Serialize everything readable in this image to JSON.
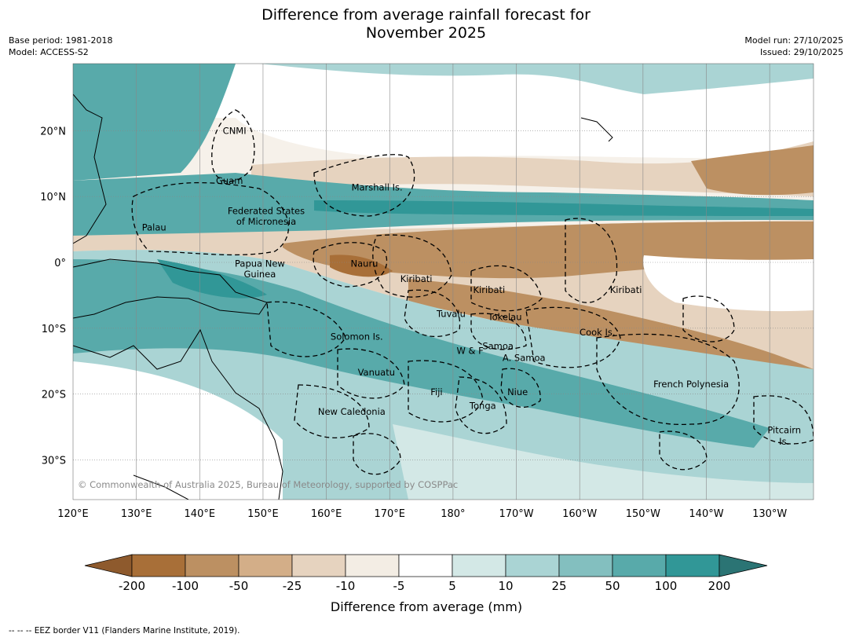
{
  "title_line1": "Difference from average rainfall forecast for",
  "title_line2": "November 2025",
  "meta": {
    "base_period": "Base period: 1981-2018",
    "model": "Model: ACCESS-S2",
    "model_run": "Model run: 27/10/2025",
    "issued": "Issued: 29/10/2025"
  },
  "lon_ticks": [
    "120°E",
    "130°E",
    "140°E",
    "150°E",
    "160°E",
    "170°E",
    "180°",
    "170°W",
    "160°W",
    "150°W",
    "140°W",
    "130°W"
  ],
  "lat_ticks": [
    "20°N",
    "10°N",
    "0°",
    "10°S",
    "20°S",
    "30°S"
  ],
  "places": [
    {
      "name": "CNMI",
      "lon": 145.5,
      "lat": 20.0
    },
    {
      "name": "Guam",
      "lon": 144.7,
      "lat": 12.4
    },
    {
      "name": "Marshall Is.",
      "lon": 168.0,
      "lat": 11.4
    },
    {
      "name": "Federated States",
      "lon": 150.5,
      "lat": 7.8
    },
    {
      "name": "of Micronesia",
      "lon": 150.5,
      "lat": 6.2
    },
    {
      "name": "Palau",
      "lon": 132.8,
      "lat": 5.3
    },
    {
      "name": "Papua New",
      "lon": 149.5,
      "lat": -0.2
    },
    {
      "name": "Guinea",
      "lon": 149.5,
      "lat": -1.8
    },
    {
      "name": "Nauru",
      "lon": 166.0,
      "lat": -0.2
    },
    {
      "name": "Kiribati",
      "lon": 174.2,
      "lat": -2.5
    },
    {
      "name": "Kiribati",
      "lon": -174.3,
      "lat": -4.2
    },
    {
      "name": "Kiribati",
      "lon": -152.7,
      "lat": -4.2
    },
    {
      "name": "Tuvalu",
      "lon": 179.7,
      "lat": -7.8
    },
    {
      "name": "Tokelau",
      "lon": -171.8,
      "lat": -8.3
    },
    {
      "name": "Cook Is.",
      "lon": -157.2,
      "lat": -10.6
    },
    {
      "name": "Solomon Is.",
      "lon": 164.8,
      "lat": -11.3
    },
    {
      "name": "Samoa",
      "lon": -172.9,
      "lat": -12.7
    },
    {
      "name": "W & F",
      "lon": -177.3,
      "lat": -13.4
    },
    {
      "name": "A. Samoa",
      "lon": -168.8,
      "lat": -14.5
    },
    {
      "name": "Vanuatu",
      "lon": 167.9,
      "lat": -16.7
    },
    {
      "name": "Fiji",
      "lon": 177.4,
      "lat": -19.7
    },
    {
      "name": "Niue",
      "lon": -169.8,
      "lat": -19.7
    },
    {
      "name": "French Polynesia",
      "lon": -142.4,
      "lat": -18.5
    },
    {
      "name": "Tonga",
      "lon": -175.3,
      "lat": -21.8
    },
    {
      "name": "New Caledonia",
      "lon": 164.0,
      "lat": -22.7
    },
    {
      "name": "Pitcairn",
      "lon": -127.7,
      "lat": -25.5
    },
    {
      "name": "Is.",
      "lon": -127.7,
      "lat": -27.2
    }
  ],
  "copyright": "© Commonwealth of Australia 2025, Bureau of Meteorology, supported by COSPPac",
  "colorbar": {
    "title": "Difference from average (mm)",
    "labels": [
      "-200",
      "-100",
      "-50",
      "-25",
      "-10",
      "-5",
      "5",
      "10",
      "25",
      "50",
      "100",
      "200"
    ],
    "colors": [
      "#8e5a2d",
      "#a86f38",
      "#bc9062",
      "#d3ae88",
      "#e6d3bf",
      "#f3ede4",
      "#ffffff",
      "#d3e8e6",
      "#aad4d4",
      "#83bfbf",
      "#58aaaa",
      "#319797",
      "#2b7474"
    ]
  },
  "footer": "--  --  -- EEZ border V11 (Flanders Marine Institute, 2019)."
}
